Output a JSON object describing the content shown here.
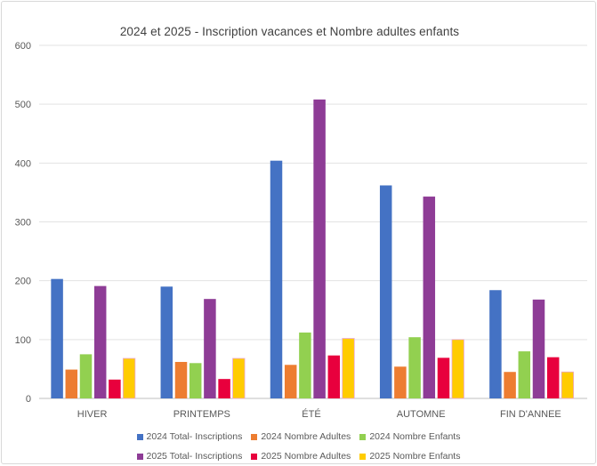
{
  "chart_data": {
    "type": "bar",
    "title": "2024 et 2025 - Inscription vacances et Nombre adultes enfants",
    "xlabel": "",
    "ylabel": "",
    "ylim": [
      0,
      600
    ],
    "yticks": [
      0,
      100,
      200,
      300,
      400,
      500,
      600
    ],
    "grid": true,
    "legend_position": "bottom",
    "categories": [
      "HIVER",
      "PRINTEMPS",
      "ÉTÉ",
      "AUTOMNE",
      "FIN D'ANNEE"
    ],
    "series": [
      {
        "name": "2024 Total- Inscriptions",
        "color": "#4472C4",
        "values": [
          203,
          190,
          404,
          362,
          184
        ]
      },
      {
        "name": "2024 Nombre Adultes",
        "color": "#ED7D31",
        "values": [
          49,
          62,
          57,
          54,
          45
        ]
      },
      {
        "name": "2024 Nombre Enfants",
        "color": "#92D050",
        "values": [
          75,
          60,
          112,
          104,
          80
        ]
      },
      {
        "name": "2025 Total- Inscriptions",
        "color": "#8E3C96",
        "values": [
          191,
          169,
          508,
          343,
          168
        ]
      },
      {
        "name": "2025 Nombre Adultes",
        "color": "#E8003D",
        "values": [
          32,
          33,
          73,
          69,
          70
        ]
      },
      {
        "name": "2025 Nombre Enfants",
        "color": "#FFCC00",
        "values": [
          68,
          68,
          102,
          100,
          45
        ]
      }
    ]
  }
}
